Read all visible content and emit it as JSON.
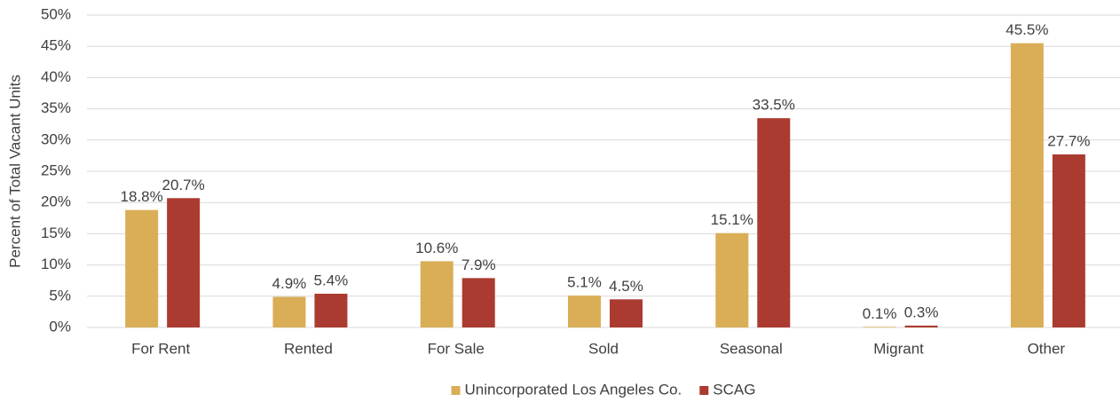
{
  "chart_data": {
    "type": "bar",
    "y_label": "Percent of Total Vacant Units",
    "categories": [
      "For Rent",
      "Rented",
      "For Sale",
      "Sold",
      "Seasonal",
      "Migrant",
      "Other"
    ],
    "series": [
      {
        "name": "Unincorporated Los Angeles Co.",
        "color": "#d9ae57",
        "values": [
          18.8,
          4.9,
          10.6,
          5.1,
          15.1,
          0.1,
          45.5
        ],
        "value_labels": [
          "18.8%",
          "4.9%",
          "10.6%",
          "5.1%",
          "15.1%",
          "0.1%",
          "45.5%"
        ]
      },
      {
        "name": "SCAG",
        "color": "#ab3b30",
        "values": [
          20.7,
          5.4,
          7.9,
          4.5,
          33.5,
          0.3,
          27.7
        ],
        "value_labels": [
          "20.7%",
          "5.4%",
          "7.9%",
          "4.5%",
          "33.5%",
          "0.3%",
          "27.7%"
        ]
      }
    ],
    "ylim": [
      0,
      50
    ],
    "yticks": [
      {
        "value": 0,
        "label": "0%"
      },
      {
        "value": 5,
        "label": "5%"
      },
      {
        "value": 10,
        "label": "10%"
      },
      {
        "value": 15,
        "label": "15%"
      },
      {
        "value": 20,
        "label": "20%"
      },
      {
        "value": 25,
        "label": "25%"
      },
      {
        "value": 30,
        "label": "30%"
      },
      {
        "value": 35,
        "label": "35%"
      },
      {
        "value": 40,
        "label": "40%"
      },
      {
        "value": 45,
        "label": "45%"
      },
      {
        "value": 50,
        "label": "50%"
      }
    ],
    "grid": true,
    "legend": "bottom"
  }
}
